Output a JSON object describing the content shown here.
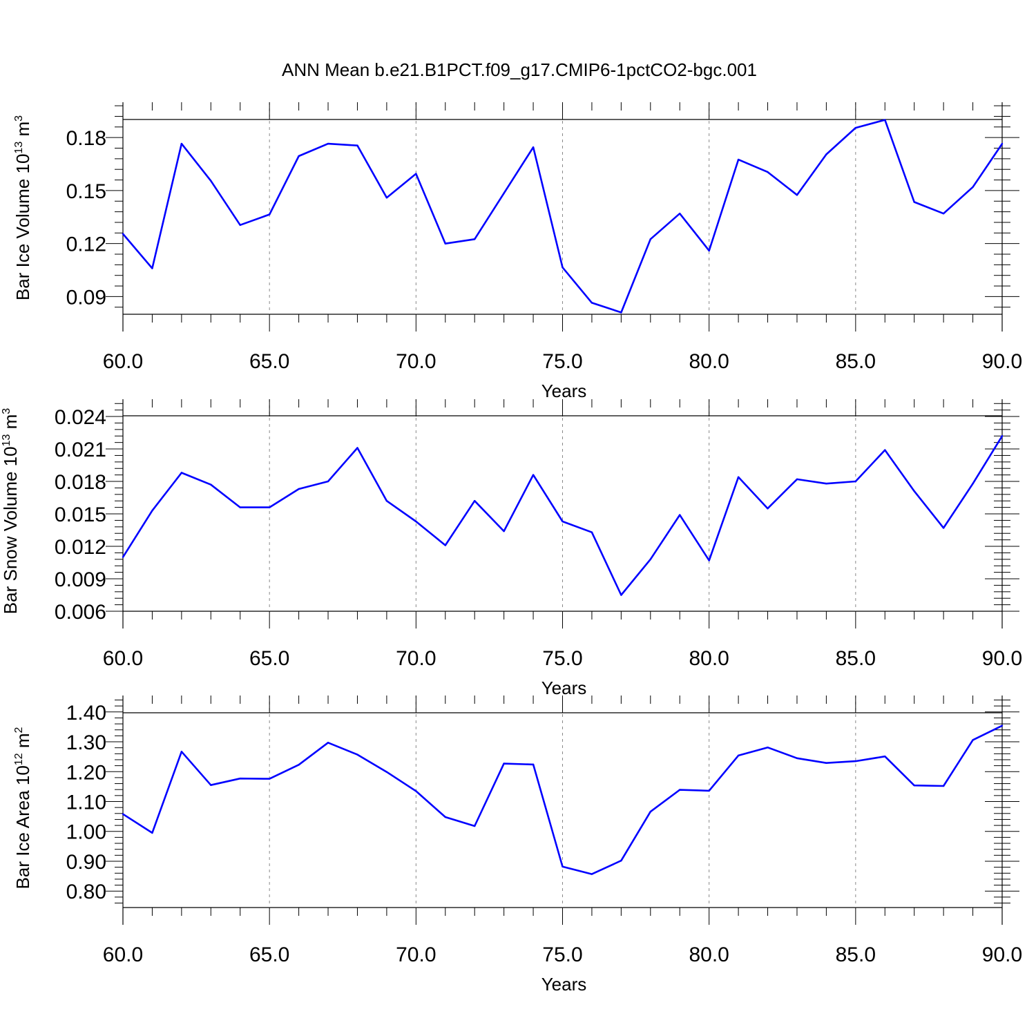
{
  "title": "ANN Mean b.e21.B1PCT.f09_g17.CMIP6-1pctCO2-bgc.001",
  "colors": {
    "line": "#0000ff",
    "axis": "#000000",
    "grid": "#888888"
  },
  "chart_data": [
    {
      "type": "line",
      "ylabel": {
        "main": "Bar Ice Volume 10",
        "exp": "13",
        "unit": " m",
        "unit_exp": "3"
      },
      "xlabel": "Years",
      "xlim": [
        60,
        90
      ],
      "ylim": [
        0.08,
        0.2
      ],
      "x_ticks": [
        60,
        65,
        70,
        75,
        80,
        85,
        90
      ],
      "x_tick_labels": [
        "60.0",
        "65.0",
        "70.0",
        "75.0",
        "80.0",
        "85.0",
        "90.0"
      ],
      "y_ticks": [
        0.09,
        0.12,
        0.15,
        0.18
      ],
      "y_tick_labels": [
        "0.09",
        "0.12",
        "0.15",
        "0.18"
      ],
      "grid": "vertical-dashed",
      "x": [
        60,
        61,
        62,
        63,
        64,
        65,
        66,
        67,
        68,
        69,
        70,
        71,
        72,
        73,
        74,
        75,
        76,
        77,
        78,
        79,
        80,
        81,
        82,
        83,
        84,
        85,
        86,
        87,
        88,
        89,
        90
      ],
      "values": [
        0.1255,
        0.106,
        0.1765,
        0.1555,
        0.1305,
        0.1365,
        0.1695,
        0.1765,
        0.1755,
        0.146,
        0.1595,
        0.12,
        0.1225,
        0.1485,
        0.1745,
        0.1065,
        0.0865,
        0.081,
        0.1225,
        0.137,
        0.116,
        0.1675,
        0.1605,
        0.1475,
        0.1705,
        0.1855,
        0.19,
        0.1435,
        0.137,
        0.152,
        0.1765
      ]
    },
    {
      "type": "line",
      "ylabel": {
        "main": "Bar Snow Volume 10",
        "exp": "13",
        "unit": " m",
        "unit_exp": "3"
      },
      "xlabel": "Years",
      "xlim": [
        60,
        90
      ],
      "ylim": [
        0.006,
        0.0256
      ],
      "x_ticks": [
        60,
        65,
        70,
        75,
        80,
        85,
        90
      ],
      "x_tick_labels": [
        "60.0",
        "65.0",
        "70.0",
        "75.0",
        "80.0",
        "85.0",
        "90.0"
      ],
      "y_ticks": [
        0.006,
        0.009,
        0.012,
        0.015,
        0.018,
        0.021,
        0.024
      ],
      "y_tick_labels": [
        "0.006",
        "0.009",
        "0.012",
        "0.015",
        "0.018",
        "0.021",
        "0.024"
      ],
      "grid": "vertical-dashed",
      "x": [
        60,
        61,
        62,
        63,
        64,
        65,
        66,
        67,
        68,
        69,
        70,
        71,
        72,
        73,
        74,
        75,
        76,
        77,
        78,
        79,
        80,
        81,
        82,
        83,
        84,
        85,
        86,
        87,
        88,
        89,
        90
      ],
      "values": [
        0.011,
        0.0153,
        0.0188,
        0.0177,
        0.0156,
        0.0156,
        0.0173,
        0.018,
        0.0211,
        0.0162,
        0.0143,
        0.0121,
        0.0162,
        0.0134,
        0.0186,
        0.0143,
        0.0133,
        0.0075,
        0.0108,
        0.0149,
        0.0107,
        0.0184,
        0.0155,
        0.0182,
        0.0178,
        0.018,
        0.0209,
        0.0171,
        0.0137,
        0.0178,
        0.0222
      ]
    },
    {
      "type": "line",
      "ylabel": {
        "main": "Bar Ice Area 10",
        "exp": "12",
        "unit": " m",
        "unit_exp": "2"
      },
      "xlabel": "Years",
      "xlim": [
        60,
        90
      ],
      "ylim": [
        0.745,
        1.455
      ],
      "x_ticks": [
        60,
        65,
        70,
        75,
        80,
        85,
        90
      ],
      "x_tick_labels": [
        "60.0",
        "65.0",
        "70.0",
        "75.0",
        "80.0",
        "85.0",
        "90.0"
      ],
      "y_ticks": [
        0.8,
        0.9,
        1.0,
        1.1,
        1.2,
        1.3,
        1.4
      ],
      "y_tick_labels": [
        "0.80",
        "0.90",
        "1.00",
        "1.10",
        "1.20",
        "1.30",
        "1.40"
      ],
      "grid": "vertical-dashed",
      "x": [
        60,
        61,
        62,
        63,
        64,
        65,
        66,
        67,
        68,
        69,
        70,
        71,
        72,
        73,
        74,
        75,
        76,
        77,
        78,
        79,
        80,
        81,
        82,
        83,
        84,
        85,
        86,
        87,
        88,
        89,
        90
      ],
      "values": [
        1.058,
        0.995,
        1.267,
        1.155,
        1.177,
        1.176,
        1.223,
        1.297,
        1.257,
        1.199,
        1.135,
        1.048,
        1.018,
        1.227,
        1.224,
        0.882,
        0.857,
        0.902,
        1.066,
        1.139,
        1.136,
        1.254,
        1.281,
        1.245,
        1.229,
        1.235,
        1.251,
        1.154,
        1.152,
        1.306,
        1.354
      ]
    }
  ]
}
